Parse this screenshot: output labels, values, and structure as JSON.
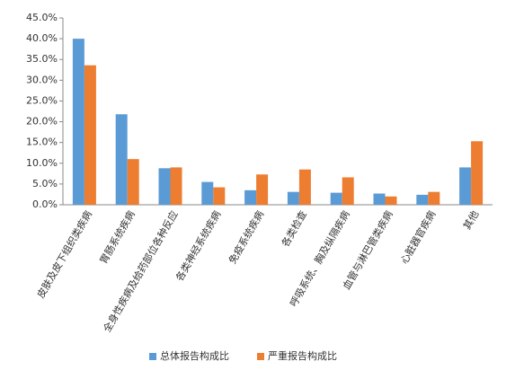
{
  "chart_data": {
    "type": "bar",
    "categories": [
      "皮肤及皮下组织类疾病",
      "胃肠系统疾病",
      "全身性疾病及给药部位各种反应",
      "各类神经系统疾病",
      "免疫系统疾病",
      "各类检查",
      "呼吸系统、胸及纵隔疾病",
      "血管与淋巴管类疾病",
      "心脏器官疾病",
      "其他"
    ],
    "series": [
      {
        "name": "总体报告构成比",
        "color": "#5b9bd5",
        "values": [
          40.0,
          21.8,
          8.8,
          5.5,
          3.5,
          3.1,
          2.9,
          2.7,
          2.4,
          9.0
        ]
      },
      {
        "name": "严重报告构成比",
        "color": "#ed7d31",
        "values": [
          33.6,
          11.0,
          9.0,
          4.2,
          7.3,
          8.5,
          6.6,
          2.0,
          3.1,
          15.3
        ]
      }
    ],
    "ylim": [
      0,
      45
    ],
    "yticks": [
      {
        "value": 0,
        "label": "0.0%"
      },
      {
        "value": 5,
        "label": "5.0%"
      },
      {
        "value": 10,
        "label": "10.0%"
      },
      {
        "value": 15,
        "label": "15.0%"
      },
      {
        "value": 20,
        "label": "20.0%"
      },
      {
        "value": 25,
        "label": "25.0%"
      },
      {
        "value": 30,
        "label": "30.0%"
      },
      {
        "value": 35,
        "label": "35.0%"
      },
      {
        "value": 40,
        "label": "40.0%"
      },
      {
        "value": 45,
        "label": "45.0%"
      }
    ],
    "grid": false,
    "legend": "bottom"
  }
}
